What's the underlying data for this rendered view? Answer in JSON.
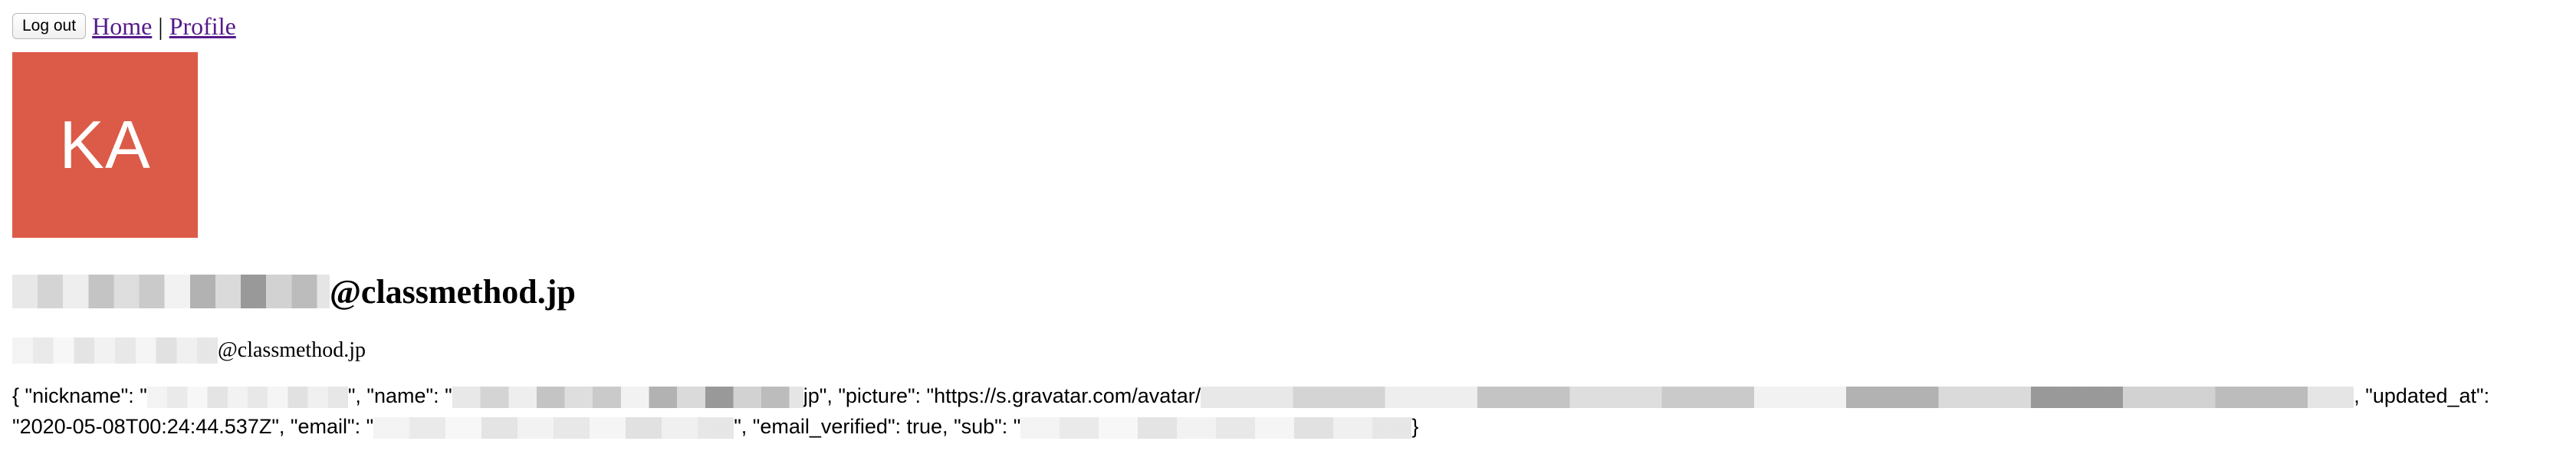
{
  "nav": {
    "logout_label": "Log out",
    "home_label": "Home",
    "separator": "|",
    "profile_label": "Profile"
  },
  "avatar": {
    "initials": "KA",
    "color": "#db5b48"
  },
  "profile": {
    "name_suffix": "@classmethod.jp",
    "email_suffix": "@classmethod.jp"
  },
  "json_dump": {
    "part1": "{ \"nickname\": \"",
    "part2": "\", \"name\": \"",
    "part3": "jp\", \"picture\": \"https://s.gravatar.com/avatar/",
    "part4": ", \"updated_at\":",
    "part5": "\"2020-05-08T00:24:44.537Z\", \"email\": \"",
    "part6": "\", \"email_verified\": true, \"sub\": \"",
    "part7": "}"
  }
}
